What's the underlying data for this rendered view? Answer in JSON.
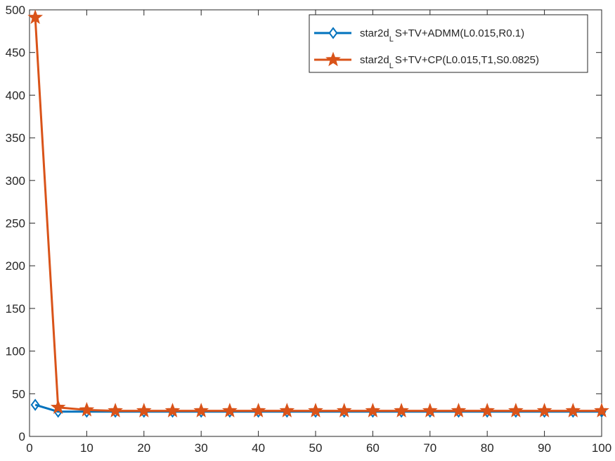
{
  "chart_data": {
    "type": "line",
    "title": "",
    "xlabel": "",
    "ylabel": "",
    "xlim": [
      0,
      100
    ],
    "ylim": [
      0,
      500
    ],
    "x_ticks": [
      "0",
      "10",
      "20",
      "30",
      "40",
      "50",
      "60",
      "70",
      "80",
      "90",
      "100"
    ],
    "y_ticks": [
      "0",
      "50",
      "100",
      "150",
      "200",
      "250",
      "300",
      "350",
      "400",
      "450",
      "500"
    ],
    "grid": false,
    "legend_position": "top-right",
    "x": [
      1,
      5,
      10,
      15,
      20,
      25,
      30,
      35,
      40,
      45,
      50,
      55,
      60,
      65,
      70,
      75,
      80,
      85,
      90,
      95,
      100
    ],
    "series": [
      {
        "name": "star2d_LS+TV+ADMM(L0.015,R0.1)",
        "legend_main": "star2d",
        "legend_sub": "L",
        "legend_rest": "S+TV+ADMM(L0.015,R0.1)",
        "color": "#0072BD",
        "marker": "diamond",
        "values": [
          37,
          29,
          29,
          29,
          29,
          29,
          29,
          29,
          29,
          29,
          29,
          29,
          29,
          29,
          29,
          29,
          29,
          29,
          29,
          29,
          29
        ]
      },
      {
        "name": "star2d_LS+TV+CP(L0.015,T1,S0.0825)",
        "legend_main": "star2d",
        "legend_sub": "L",
        "legend_rest": "S+TV+CP(L0.015,T1,S0.0825)",
        "color": "#D95319",
        "marker": "star",
        "values": [
          491,
          34,
          31,
          30,
          30,
          30,
          30,
          30,
          30,
          30,
          30,
          30,
          30,
          30,
          30,
          30,
          30,
          30,
          30,
          30,
          30
        ]
      }
    ]
  }
}
